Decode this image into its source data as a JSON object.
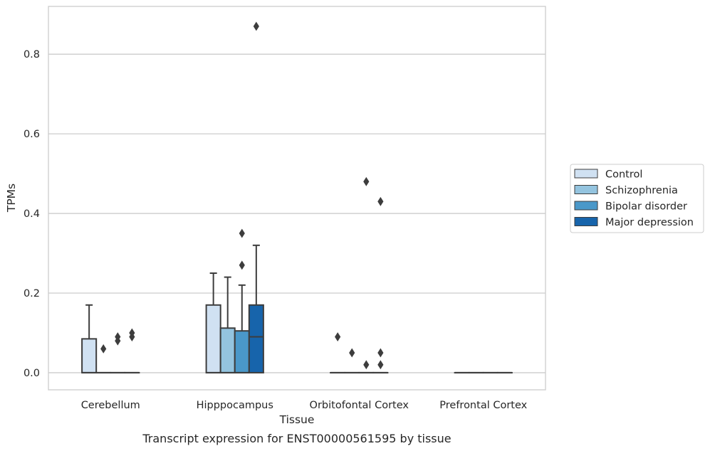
{
  "chart_data": {
    "type": "boxplot",
    "caption": "Transcript expression for ENST00000561595 by tissue",
    "xlabel": "Tissue",
    "ylabel": "TPMs",
    "ylim": [
      -0.043,
      0.92
    ],
    "yticks": [
      0.0,
      0.2,
      0.4,
      0.6,
      0.8
    ],
    "ytick_labels": [
      "0.0",
      "0.2",
      "0.4",
      "0.6",
      "0.8"
    ],
    "grid": "horizontal",
    "legend_position": "right",
    "categories": [
      "Cerebellum",
      "Hipppocampus",
      "Orbitofontal Cortex",
      "Prefrontal Cortex"
    ],
    "series": [
      {
        "name": "Control",
        "color": "#d0e1f2",
        "boxes": [
          {
            "q1": 0.0,
            "median": 0.0,
            "q3": 0.085,
            "whisker_low": 0.0,
            "whisker_high": 0.17,
            "outliers": []
          },
          {
            "q1": 0.0,
            "median": 0.0,
            "q3": 0.17,
            "whisker_low": 0.0,
            "whisker_high": 0.25,
            "outliers": []
          },
          {
            "q1": 0.0,
            "median": 0.0,
            "q3": 0.0,
            "whisker_low": 0.0,
            "whisker_high": 0.0,
            "outliers": [
              0.09
            ]
          },
          {
            "q1": 0.0,
            "median": 0.0,
            "q3": 0.0,
            "whisker_low": 0.0,
            "whisker_high": 0.0,
            "outliers": []
          }
        ]
      },
      {
        "name": "Schizophrenia",
        "color": "#94c4df",
        "boxes": [
          {
            "q1": 0.0,
            "median": 0.0,
            "q3": 0.0,
            "whisker_low": 0.0,
            "whisker_high": 0.0,
            "outliers": [
              0.06
            ]
          },
          {
            "q1": 0.0,
            "median": 0.0,
            "q3": 0.112,
            "whisker_low": 0.0,
            "whisker_high": 0.24,
            "outliers": []
          },
          {
            "q1": 0.0,
            "median": 0.0,
            "q3": 0.0,
            "whisker_low": 0.0,
            "whisker_high": 0.0,
            "outliers": [
              0.05
            ]
          },
          {
            "q1": 0.0,
            "median": 0.0,
            "q3": 0.0,
            "whisker_low": 0.0,
            "whisker_high": 0.0,
            "outliers": []
          }
        ]
      },
      {
        "name": "Bipolar disorder",
        "color": "#4a98c9",
        "boxes": [
          {
            "q1": 0.0,
            "median": 0.0,
            "q3": 0.0,
            "whisker_low": 0.0,
            "whisker_high": 0.0,
            "outliers": [
              0.08,
              0.09
            ]
          },
          {
            "q1": 0.0,
            "median": 0.0,
            "q3": 0.105,
            "whisker_low": 0.0,
            "whisker_high": 0.22,
            "outliers": [
              0.27,
              0.35
            ]
          },
          {
            "q1": 0.0,
            "median": 0.0,
            "q3": 0.0,
            "whisker_low": 0.0,
            "whisker_high": 0.0,
            "outliers": [
              0.02,
              0.48
            ]
          },
          {
            "q1": 0.0,
            "median": 0.0,
            "q3": 0.0,
            "whisker_low": 0.0,
            "whisker_high": 0.0,
            "outliers": []
          }
        ]
      },
      {
        "name": "Major depression",
        "color": "#1764ab",
        "boxes": [
          {
            "q1": 0.0,
            "median": 0.0,
            "q3": 0.0,
            "whisker_low": 0.0,
            "whisker_high": 0.0,
            "outliers": [
              0.09,
              0.1
            ]
          },
          {
            "q1": 0.0,
            "median": 0.09,
            "q3": 0.17,
            "whisker_low": 0.0,
            "whisker_high": 0.32,
            "outliers": [
              0.87
            ]
          },
          {
            "q1": 0.0,
            "median": 0.0,
            "q3": 0.0,
            "whisker_low": 0.0,
            "whisker_high": 0.0,
            "outliers": [
              0.02,
              0.05,
              0.43
            ]
          },
          {
            "q1": 0.0,
            "median": 0.0,
            "q3": 0.0,
            "whisker_low": 0.0,
            "whisker_high": 0.0,
            "outliers": []
          }
        ]
      }
    ]
  }
}
